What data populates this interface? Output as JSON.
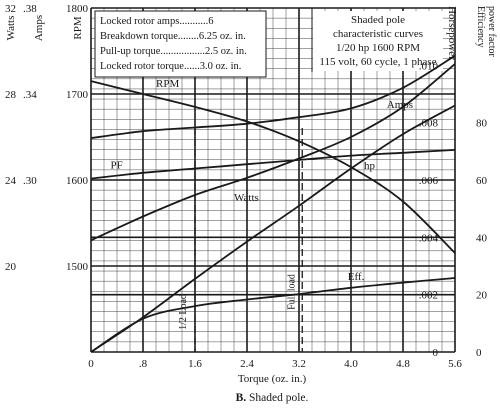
{
  "chart_data": {
    "type": "line",
    "x_axis": {
      "label": "Torque (oz. in.)",
      "range": [
        0,
        5.6
      ],
      "ticks": [
        0,
        0.8,
        1.6,
        2.4,
        3.2,
        4.0,
        4.8,
        5.6
      ],
      "tick_labels": [
        "0",
        ".8",
        "1.6",
        "2.4",
        "3.2",
        "4.0",
        "4.8",
        "5.6"
      ]
    },
    "axes": {
      "watts": {
        "label": "Watts",
        "range": [
          16,
          32
        ],
        "ticks": [
          20,
          24,
          28,
          32
        ],
        "tick_labels": [
          "20",
          "24",
          "28",
          "32"
        ]
      },
      "amps": {
        "label": "Amps",
        "range": [
          0.22,
          0.38
        ],
        "ticks": [
          0.3,
          0.34,
          0.38
        ],
        "tick_labels": [
          ".30",
          ".34",
          ".38"
        ]
      },
      "rpm": {
        "label": "RPM",
        "range": [
          1400,
          1800
        ],
        "ticks": [
          1500,
          1600,
          1700,
          1800
        ],
        "tick_labels": [
          "1500",
          "1600",
          "1700",
          "1800"
        ]
      },
      "horsepower": {
        "label": "Horsepower",
        "range": [
          0,
          0.012
        ],
        "ticks": [
          0,
          0.002,
          0.004,
          0.006,
          0.008,
          0.01
        ],
        "tick_labels": [
          "0",
          ".002",
          ".004",
          ".006",
          ".008",
          ".010"
        ]
      },
      "efficiency_pf": {
        "label": "Efficiency power factor",
        "range": [
          0,
          120
        ],
        "ticks": [
          0,
          20,
          40,
          60,
          80
        ],
        "tick_labels": [
          "0",
          "20",
          "40",
          "60",
          "80"
        ]
      }
    },
    "series": [
      {
        "name": "RPM",
        "axis": "rpm",
        "x": [
          0,
          0.8,
          1.6,
          2.4,
          3.2,
          4.0,
          4.8,
          5.6
        ],
        "values": [
          1715,
          1700,
          1685,
          1668,
          1645,
          1615,
          1575,
          1515
        ]
      },
      {
        "name": "Watts",
        "axis": "watts",
        "x": [
          0,
          0.8,
          1.6,
          2.4,
          3.2,
          4.0,
          4.8,
          5.6
        ],
        "values": [
          21.2,
          22.3,
          23.3,
          24.1,
          25.0,
          26.0,
          27.4,
          29.4
        ]
      },
      {
        "name": "PF",
        "axis": "efficiency_pf",
        "x": [
          0,
          0.8,
          1.6,
          2.4,
          3.2,
          4.0,
          4.8,
          5.6
        ],
        "values": [
          60.5,
          62.5,
          64,
          65.5,
          67,
          68.5,
          69.5,
          70.5
        ]
      },
      {
        "name": "hp",
        "axis": "horsepower",
        "x": [
          0,
          0.8,
          1.6,
          2.4,
          3.2,
          4.0,
          4.8,
          5.6
        ],
        "values": [
          0,
          0.00121,
          0.00255,
          0.00385,
          0.0051,
          0.0064,
          0.0076,
          0.0086
        ]
      },
      {
        "name": "Amps",
        "axis": "amps",
        "x": [
          0,
          0.8,
          1.6,
          2.4,
          3.2,
          4.0,
          4.8,
          5.6
        ],
        "values": [
          0.3195,
          0.3227,
          0.3244,
          0.3262,
          0.3292,
          0.3333,
          0.3429,
          0.3578
        ]
      },
      {
        "name": "Eff.",
        "axis": "efficiency_pf",
        "x": [
          0,
          0.8,
          1.6,
          2.4,
          3.2,
          4.0,
          4.8,
          5.6
        ],
        "values": [
          0,
          11.6,
          16,
          18.3,
          20.2,
          22.4,
          24.2,
          25.8
        ]
      }
    ],
    "annotations": [
      {
        "text": "1/2 Load",
        "x": 1.6
      },
      {
        "text": "Full load",
        "x": 3.25
      }
    ],
    "grid": true,
    "legend": "none"
  },
  "specs": [
    {
      "label": "Locked rotor amps",
      "value": ".6"
    },
    {
      "label": "Breakdown torque",
      "value": "6.25 oz. in."
    },
    {
      "label": "Pull-up torque",
      "value": "2.5 oz. in."
    },
    {
      "label": "Locked rotor torque",
      "value": "3.0 oz. in."
    }
  ],
  "info": {
    "line1": "Shaded pole",
    "line2": "characteristic curves",
    "line3": "1/20 hp 1600 RPM",
    "line4": "115 volt, 60 cycle, 1 phase"
  },
  "caption": {
    "letter": "B.",
    "text": "Shaded pole."
  }
}
